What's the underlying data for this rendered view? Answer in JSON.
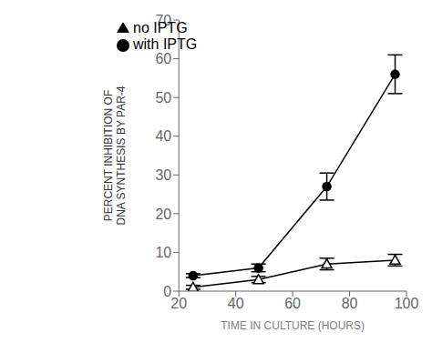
{
  "chart_data": {
    "type": "line",
    "x": [
      25,
      48,
      72,
      96
    ],
    "series": [
      {
        "name": "no IPTG",
        "color": "#000000",
        "marker": "triangle",
        "values": [
          1,
          3,
          7,
          8
        ],
        "errors": [
          0.5,
          0.8,
          1.5,
          1.5
        ]
      },
      {
        "name": "with IPTG",
        "color": "#000000",
        "marker": "circle",
        "values": [
          4,
          6,
          27,
          56
        ],
        "errors": [
          0.5,
          1.0,
          3.5,
          5.0
        ]
      }
    ],
    "xlabel": "TIME IN CULTURE (HOURS)",
    "ylabel": "PERCENT INHIBITION OF\nDNA SYNTHESIS BY PAR-4",
    "xlim": [
      20,
      100
    ],
    "ylim": [
      0,
      70
    ],
    "xticks": [
      20,
      40,
      60,
      80,
      100
    ],
    "yticks": [
      0,
      10,
      20,
      30,
      40,
      50,
      60,
      70
    ],
    "legend": "upper left"
  }
}
